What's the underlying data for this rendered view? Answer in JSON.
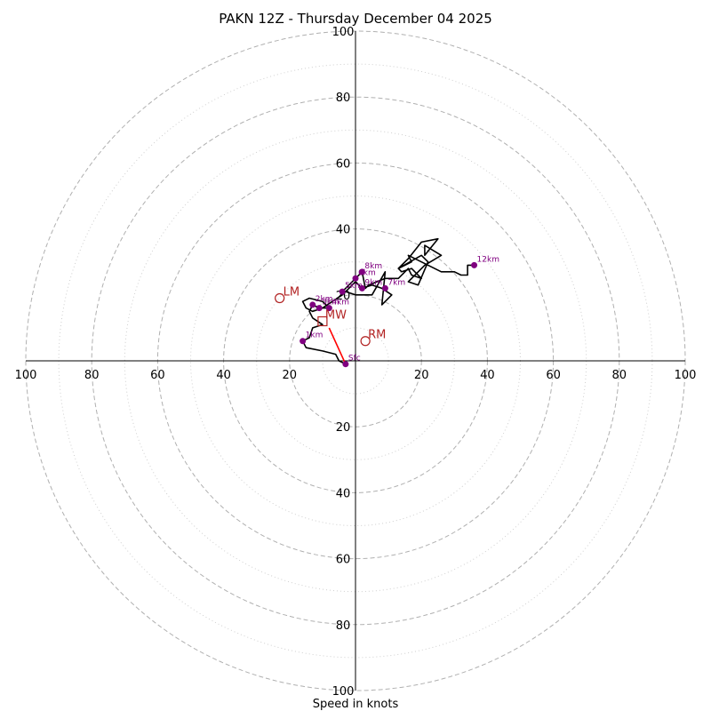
{
  "chart_data": {
    "type": "hodograph",
    "title": "PAKN 12Z - Thursday December 04 2025",
    "xlabel": "Speed in knots",
    "max_speed": 100,
    "major_rings": [
      20,
      40,
      60,
      80,
      100
    ],
    "minor_rings": [
      10,
      30,
      50,
      70,
      90
    ],
    "tick_labels": {
      "top": [
        "20",
        "40",
        "60",
        "80",
        "100"
      ],
      "bottom": [
        "20",
        "40",
        "60",
        "80",
        "100"
      ],
      "left": [
        "20",
        "40",
        "60",
        "80",
        "100"
      ],
      "right": [
        "20",
        "40",
        "60",
        "80",
        "100"
      ]
    },
    "trace": {
      "name": "wind profile",
      "color": "#000000",
      "points": [
        [
          -3,
          -1
        ],
        [
          -5,
          0
        ],
        [
          -6,
          2
        ],
        [
          -10,
          3
        ],
        [
          -15,
          4
        ],
        [
          -16,
          6
        ],
        [
          -14,
          7
        ],
        [
          -13,
          10
        ],
        [
          -10,
          11
        ],
        [
          -13,
          13
        ],
        [
          -14,
          15
        ],
        [
          -13,
          17
        ],
        [
          -11,
          16
        ],
        [
          -8,
          16
        ],
        [
          -10,
          18
        ],
        [
          -14,
          19
        ],
        [
          -16,
          18
        ],
        [
          -15,
          16
        ],
        [
          -13,
          15
        ],
        [
          -10,
          16
        ],
        [
          -7,
          18
        ],
        [
          -4,
          20
        ],
        [
          -2,
          22
        ],
        [
          0,
          24
        ],
        [
          2,
          22
        ],
        [
          5,
          23
        ],
        [
          8,
          22
        ],
        [
          11,
          20
        ],
        [
          8,
          17
        ],
        [
          9,
          27
        ],
        [
          5,
          20
        ],
        [
          0,
          20
        ],
        [
          -3,
          21
        ],
        [
          -4,
          21
        ],
        [
          0,
          25
        ],
        [
          2,
          27
        ],
        [
          3,
          22
        ],
        [
          4,
          23
        ],
        [
          9,
          25
        ],
        [
          13,
          25
        ],
        [
          16,
          28
        ],
        [
          17,
          26
        ],
        [
          20,
          25
        ],
        [
          17,
          28
        ],
        [
          14,
          27
        ],
        [
          13,
          28
        ],
        [
          20,
          32
        ],
        [
          22,
          30
        ],
        [
          19,
          23
        ],
        [
          16,
          24
        ],
        [
          21,
          29
        ],
        [
          26,
          32
        ],
        [
          21,
          35
        ],
        [
          21,
          32
        ],
        [
          25,
          37
        ],
        [
          20,
          36
        ],
        [
          16,
          31
        ],
        [
          13,
          28
        ],
        [
          17,
          30
        ],
        [
          16,
          32
        ],
        [
          26,
          27
        ],
        [
          30,
          27
        ],
        [
          32,
          26
        ],
        [
          34,
          26
        ],
        [
          34,
          29
        ],
        [
          36,
          29
        ]
      ]
    },
    "height_markers": [
      {
        "label": "Sfc",
        "u": -3,
        "v": -1
      },
      {
        "label": "1km",
        "u": -16,
        "v": 6
      },
      {
        "label": "2km",
        "u": -13,
        "v": 17
      },
      {
        "label": "3km",
        "u": -11,
        "v": 16
      },
      {
        "label": "4km",
        "u": -8,
        "v": 16
      },
      {
        "label": "5km",
        "u": -4,
        "v": 21
      },
      {
        "label": "6km",
        "u": 0,
        "v": 25
      },
      {
        "label": "7km",
        "u": 9,
        "v": 22
      },
      {
        "label": "8km",
        "u": 2,
        "v": 27
      },
      {
        "label": "9km",
        "u": 2,
        "v": 22
      },
      {
        "label": "12km",
        "u": 36,
        "v": 29
      }
    ],
    "storm_motion": {
      "bunkers_lm": {
        "label": "LM",
        "u": -23,
        "v": 19
      },
      "bunkers_rm": {
        "label": "RM",
        "u": 3,
        "v": 6
      },
      "mean_wind": {
        "label": "MW",
        "u": -10,
        "v": 12
      },
      "mw_km_label": "3km",
      "shear_vector": {
        "from": [
          -3,
          -1
        ],
        "to": [
          -8,
          10
        ],
        "color": "#ff0000"
      }
    },
    "colors": {
      "trace": "#000000",
      "markers": "#800080",
      "storm_motion": "#b22222",
      "shear": "#ff0000",
      "rings": "#b0b0b0"
    }
  }
}
